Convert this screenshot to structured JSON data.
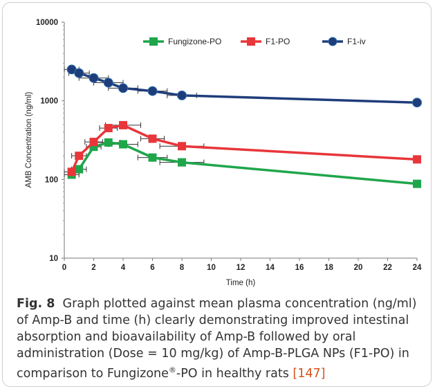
{
  "chart_data": {
    "type": "line",
    "xlabel": "Time (h)",
    "ylabel": "AMB Concentration (ng/ml)",
    "xlim": [
      0,
      24
    ],
    "ylim": [
      10,
      10000
    ],
    "yscale": "log",
    "xticks": [
      0,
      2,
      4,
      6,
      8,
      10,
      12,
      14,
      16,
      18,
      20,
      22,
      24
    ],
    "yticks": [
      10,
      100,
      1000,
      10000
    ],
    "grid": false,
    "legend_position": "top",
    "series": [
      {
        "name": "Fungizone-PO",
        "color": "#1fa64b",
        "marker": "square",
        "x": [
          0.5,
          1,
          2,
          3,
          4,
          6,
          8,
          24
        ],
        "y": [
          115,
          135,
          260,
          295,
          280,
          190,
          165,
          88
        ],
        "xerr": [
          0.5,
          0.5,
          0.5,
          0.8,
          1,
          1,
          1.5,
          0
        ]
      },
      {
        "name": "F1-PO",
        "color": "#e8363a",
        "marker": "square",
        "x": [
          0.5,
          1,
          2,
          3,
          4,
          6,
          8,
          24
        ],
        "y": [
          125,
          200,
          300,
          450,
          490,
          330,
          265,
          180
        ],
        "xerr": [
          0.5,
          0.5,
          0.6,
          0.6,
          1.2,
          0.8,
          1.5,
          0
        ]
      },
      {
        "name": "F1-iv",
        "color": "#1f3d7a",
        "marker": "circle",
        "x": [
          0.5,
          1,
          2,
          3,
          4,
          6,
          8,
          24
        ],
        "y": [
          2500,
          2250,
          1950,
          1700,
          1450,
          1330,
          1170,
          950
        ],
        "xerr": [
          0.5,
          0.7,
          1,
          1,
          1,
          1,
          1,
          0
        ]
      }
    ]
  },
  "caption": {
    "label": "Fig. 8",
    "text_before_sup": "Graph plotted against mean plasma concentration (ng/ml) of Amp-B and time (h) clearly demonstrating improved intestinal absorption and bioavailability of Amp-B followed by oral administration (Dose = 10 mg/kg) of Amp-B-PLGA NPs (F1-PO) in comparison to Fungizone",
    "sup": "®",
    "text_after_sup": "-PO in healthy rats ",
    "reference": "[147]"
  }
}
